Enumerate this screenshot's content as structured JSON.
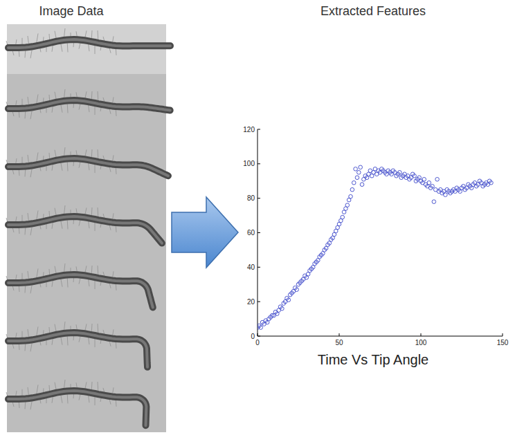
{
  "image_panel": {
    "title": "Image Data"
  },
  "chart_data": {
    "type": "scatter",
    "title": "Extracted Features",
    "x_label": "Time Vs Tip Angle",
    "color": "#3a45c8",
    "marker": "circle",
    "grid": false,
    "xlim": [
      0,
      150
    ],
    "ylim": [
      0,
      120
    ],
    "xticks": [
      0,
      50,
      100,
      150
    ],
    "yticks": [
      0,
      20,
      40,
      60,
      80,
      100,
      120
    ],
    "x": [
      0,
      1,
      2,
      3,
      4,
      5,
      6,
      7,
      8,
      9,
      10,
      11,
      12,
      13,
      14,
      15,
      16,
      17,
      18,
      19,
      20,
      21,
      22,
      23,
      24,
      25,
      26,
      27,
      28,
      29,
      30,
      31,
      32,
      33,
      34,
      35,
      36,
      37,
      38,
      39,
      40,
      41,
      42,
      43,
      44,
      45,
      46,
      47,
      48,
      49,
      50,
      51,
      52,
      53,
      54,
      55,
      56,
      57,
      58,
      59,
      60,
      61,
      62,
      63,
      64,
      65,
      66,
      67,
      68,
      69,
      70,
      71,
      72,
      73,
      74,
      75,
      76,
      77,
      78,
      79,
      80,
      81,
      82,
      83,
      84,
      85,
      86,
      87,
      88,
      89,
      90,
      91,
      92,
      93,
      94,
      95,
      96,
      97,
      98,
      99,
      100,
      101,
      102,
      103,
      104,
      105,
      106,
      107,
      108,
      109,
      110,
      111,
      112,
      113,
      114,
      115,
      116,
      117,
      118,
      119,
      120,
      121,
      122,
      123,
      124,
      125,
      126,
      127,
      128,
      129,
      130,
      131,
      132,
      133,
      134,
      135,
      136,
      137,
      138,
      139,
      140,
      141,
      142,
      143
    ],
    "values": [
      5,
      6,
      5,
      8,
      7,
      9,
      8,
      10,
      11,
      12,
      12,
      14,
      13,
      15,
      17,
      16,
      19,
      20,
      22,
      21,
      24,
      25,
      26,
      28,
      27,
      30,
      31,
      32,
      33,
      35,
      34,
      36,
      38,
      39,
      40,
      42,
      43,
      44,
      46,
      47,
      48,
      50,
      51,
      53,
      54,
      56,
      57,
      59,
      61,
      63,
      65,
      67,
      69,
      72,
      74,
      76,
      79,
      81,
      85,
      89,
      97,
      92,
      95,
      98,
      88,
      91,
      93,
      92,
      94,
      96,
      93,
      95,
      97,
      94,
      96,
      95,
      97,
      96,
      95,
      94,
      96,
      95,
      94,
      96,
      95,
      93,
      94,
      95,
      92,
      93,
      94,
      92,
      93,
      91,
      92,
      94,
      93,
      90,
      91,
      92,
      90,
      89,
      91,
      88,
      87,
      89,
      86,
      87,
      78,
      85,
      91,
      84,
      85,
      83,
      84,
      82,
      85,
      84,
      83,
      84,
      85,
      84,
      86,
      85,
      84,
      86,
      87,
      85,
      86,
      88,
      87,
      86,
      88,
      89,
      87,
      88,
      90,
      89,
      87,
      88,
      89,
      88,
      90,
      89
    ]
  }
}
